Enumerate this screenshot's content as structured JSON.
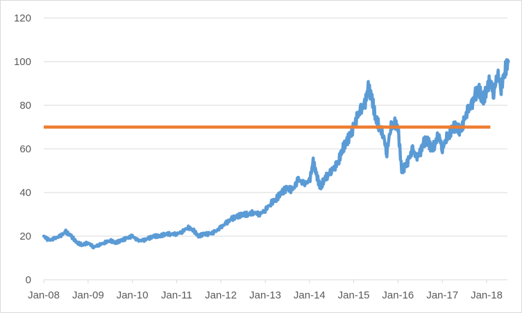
{
  "chart_data": {
    "type": "line",
    "title": "",
    "xlabel": "",
    "ylabel": "",
    "ylim": [
      0,
      120
    ],
    "yticks": [
      0,
      20,
      40,
      60,
      80,
      100,
      120
    ],
    "xlim": [
      "2008-01-01",
      "2018-06-30"
    ],
    "xticks": [
      "Jan-08",
      "Jan-09",
      "Jan-10",
      "Jan-11",
      "Jan-12",
      "Jan-13",
      "Jan-14",
      "Jan-15",
      "Jan-16",
      "Jan-17",
      "Jan-18"
    ],
    "grid": "horizontal",
    "legend": "none",
    "colors": {
      "series": "#5b9bd5",
      "reference": "#ed7d31",
      "grid": "#d9d9d9",
      "text": "#595959"
    },
    "series": [
      {
        "x": [
          "2008-01-01",
          "2008-02-15",
          "2008-04-01",
          "2008-05-15",
          "2008-07-01",
          "2008-08-15",
          "2008-10-01",
          "2008-11-15",
          "2009-01-01",
          "2009-02-15",
          "2009-04-01",
          "2009-05-15",
          "2009-07-01",
          "2009-08-15",
          "2009-10-01",
          "2009-11-15",
          "2010-01-01",
          "2010-02-15",
          "2010-04-01",
          "2010-05-15",
          "2010-07-01",
          "2010-08-15",
          "2010-10-01",
          "2010-11-15",
          "2011-01-01",
          "2011-02-15",
          "2011-04-01",
          "2011-05-15",
          "2011-07-01",
          "2011-08-15",
          "2011-10-01",
          "2011-11-15",
          "2012-01-01",
          "2012-02-15",
          "2012-04-01",
          "2012-05-15",
          "2012-07-01",
          "2012-08-15",
          "2012-10-01",
          "2012-11-15",
          "2013-01-01",
          "2013-02-15",
          "2013-04-01",
          "2013-05-15",
          "2013-07-01",
          "2013-08-15",
          "2013-10-01",
          "2013-11-15",
          "2014-01-01",
          "2014-02-01",
          "2014-03-01",
          "2014-04-01",
          "2014-05-01",
          "2014-06-01",
          "2014-07-01",
          "2014-08-01",
          "2014-09-01",
          "2014-10-01",
          "2014-11-01",
          "2014-12-01",
          "2015-01-01",
          "2015-02-01",
          "2015-03-01",
          "2015-04-01",
          "2015-05-01",
          "2015-06-01",
          "2015-07-01",
          "2015-08-01",
          "2015-09-01",
          "2015-10-01",
          "2015-11-01",
          "2015-12-01",
          "2016-01-01",
          "2016-02-01",
          "2016-03-01",
          "2016-04-01",
          "2016-05-01",
          "2016-06-01",
          "2016-07-01",
          "2016-08-01",
          "2016-09-01",
          "2016-10-01",
          "2016-11-01",
          "2016-12-01",
          "2017-01-01",
          "2017-02-01",
          "2017-03-01",
          "2017-04-01",
          "2017-05-01",
          "2017-06-01",
          "2017-07-01",
          "2017-08-01",
          "2017-09-01",
          "2017-10-01",
          "2017-11-01",
          "2017-12-01",
          "2018-01-01",
          "2018-02-01",
          "2018-03-01",
          "2018-04-01",
          "2018-05-01",
          "2018-06-01",
          "2018-06-30"
        ],
        "values": [
          20,
          18,
          19,
          20,
          22,
          20,
          17,
          16,
          17,
          15,
          16,
          17,
          18,
          17,
          18,
          19,
          20,
          18,
          18,
          19,
          20,
          20,
          21,
          21,
          21,
          22,
          24,
          23,
          20,
          21,
          21,
          22,
          24,
          26,
          28,
          29,
          30,
          30,
          31,
          30,
          32,
          35,
          37,
          40,
          42,
          41,
          46,
          44,
          45,
          54,
          48,
          42,
          46,
          48,
          50,
          52,
          55,
          60,
          63,
          66,
          70,
          75,
          78,
          80,
          88,
          83,
          74,
          70,
          67,
          58,
          70,
          72,
          70,
          50,
          52,
          55,
          60,
          56,
          58,
          63,
          64,
          60,
          62,
          67,
          60,
          65,
          67,
          70,
          70,
          68,
          73,
          78,
          80,
          85,
          87,
          82,
          87,
          92,
          85,
          95,
          88,
          96,
          100
        ]
      }
    ],
    "reference_lines": [
      {
        "y": 70,
        "x_start": "2008-01-01",
        "x_end": "2018-02-01"
      }
    ]
  }
}
